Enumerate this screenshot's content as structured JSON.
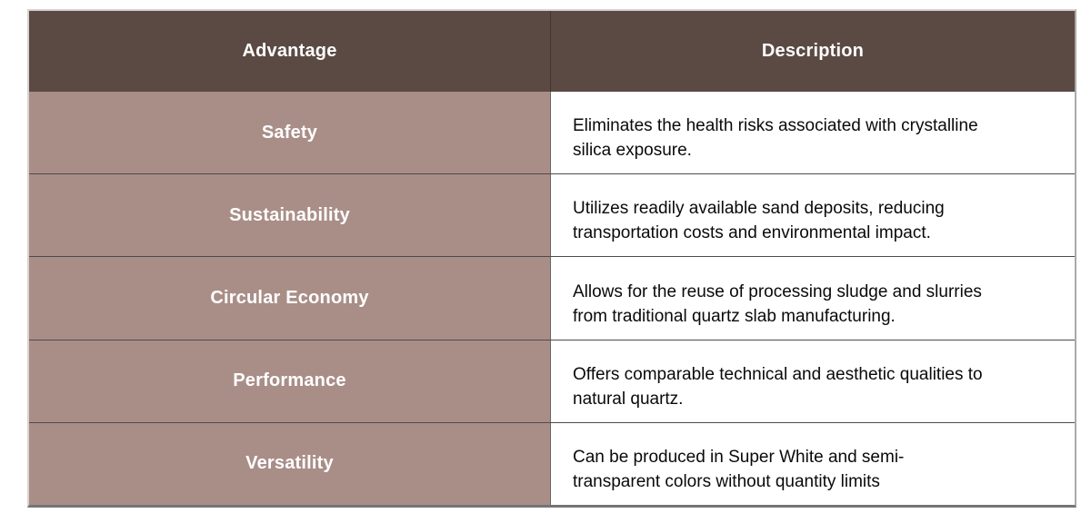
{
  "table": {
    "columns": [
      "Advantage",
      "Description"
    ],
    "rows": [
      {
        "advantage": "Safety",
        "description": "Eliminates the health risks associated with crystalline\nsilica exposure."
      },
      {
        "advantage": "Sustainability",
        "description": "Utilizes readily available sand deposits, reducing\ntransportation costs and environmental impact."
      },
      {
        "advantage": "Circular Economy",
        "description": "Allows for the reuse of processing sludge and slurries\nfrom traditional quartz slab manufacturing."
      },
      {
        "advantage": "Performance",
        "description": "Offers comparable technical and aesthetic qualities to\nnatural quartz."
      },
      {
        "advantage": "Versatility",
        "description": "Can be produced in Super White and semi-\ntransparent colors without quantity limits"
      }
    ]
  },
  "colors": {
    "header_bg": "#5b4a43",
    "advantage_bg": "#a98e88",
    "header_text": "#ffffff",
    "description_text": "#0a0a0a"
  }
}
